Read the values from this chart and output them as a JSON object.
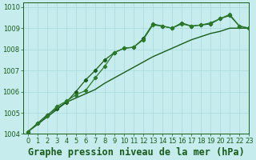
{
  "title": "Graphe pression niveau de la mer (hPa)",
  "background_color": "#c6ecee",
  "grid_color": "#a8d8dc",
  "line_color_dark": "#1a5c1a",
  "line_color_mid": "#2a7a2a",
  "xlim": [
    -0.5,
    23
  ],
  "ylim": [
    1004,
    1010.2
  ],
  "yticks": [
    1004,
    1005,
    1006,
    1007,
    1008,
    1009,
    1010
  ],
  "xticks": [
    0,
    1,
    2,
    3,
    4,
    5,
    6,
    7,
    8,
    9,
    10,
    11,
    12,
    13,
    14,
    15,
    16,
    17,
    18,
    19,
    20,
    21,
    22,
    23
  ],
  "series_jagged": [
    1004.1,
    1004.5,
    1004.85,
    1005.3,
    1005.55,
    1005.85,
    1006.05,
    1006.65,
    1007.2,
    1007.85,
    1008.05,
    1008.1,
    1008.45,
    1009.15,
    1009.1,
    1009.0,
    1009.2,
    1009.1,
    1009.15,
    1009.25,
    1009.45,
    1009.65,
    1009.1,
    1009.0
  ],
  "series_smooth": [
    1004.1,
    1004.5,
    1004.9,
    1005.2,
    1005.5,
    1006.0,
    1006.55,
    1007.0,
    1007.5,
    1007.85,
    1008.05,
    1008.1,
    1008.5,
    1009.2,
    1009.1,
    1009.0,
    1009.25,
    1009.1,
    1009.15,
    1009.2,
    1009.45,
    1009.6,
    1009.1,
    1009.0
  ],
  "series_trend": [
    1004.1,
    1004.45,
    1004.8,
    1005.15,
    1005.5,
    1005.7,
    1005.9,
    1006.1,
    1006.4,
    1006.65,
    1006.9,
    1007.15,
    1007.4,
    1007.65,
    1007.85,
    1008.05,
    1008.25,
    1008.45,
    1008.6,
    1008.75,
    1008.85,
    1009.0,
    1009.0,
    1009.0
  ],
  "title_fontsize": 8.5,
  "tick_fontsize": 6.0
}
